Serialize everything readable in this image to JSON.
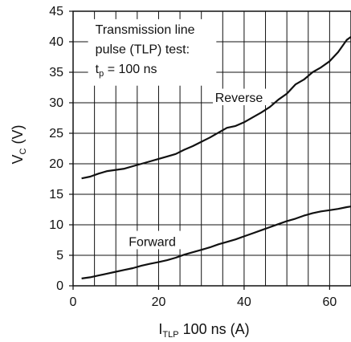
{
  "chart_data": {
    "type": "line",
    "title": "",
    "xlabel": {
      "main": "I",
      "sub": "TLP",
      "rest": " 100 ns (A)"
    },
    "ylabel": {
      "main": "V",
      "sub": "C",
      "rest": " (V)"
    },
    "xlim": [
      0,
      65
    ],
    "ylim": [
      0,
      45
    ],
    "xticks": [
      0,
      20,
      40,
      60
    ],
    "yticks": [
      0,
      5,
      10,
      15,
      20,
      25,
      30,
      35,
      40,
      45
    ],
    "grid": true,
    "grid_x_step": 5,
    "grid_y_step": 5,
    "line_color": "#111111",
    "annotation": {
      "line1": "Transmission line",
      "line2": "pulse (TLP) test:",
      "line3_main": "t",
      "line3_sub": "p",
      "line3_rest": " = 100 ns"
    },
    "series": [
      {
        "name": "Reverse",
        "x": [
          2,
          4,
          6,
          8,
          10,
          12,
          14,
          16,
          18,
          20,
          22,
          24,
          26,
          28,
          30,
          32,
          34,
          36,
          38,
          40,
          42,
          44,
          46,
          48,
          50,
          52,
          54,
          56,
          58,
          60,
          62,
          64,
          65
        ],
        "y": [
          17.6,
          17.9,
          18.4,
          18.8,
          19.0,
          19.2,
          19.6,
          20.0,
          20.4,
          20.8,
          21.2,
          21.6,
          22.3,
          22.9,
          23.6,
          24.3,
          25.1,
          25.9,
          26.2,
          26.8,
          27.6,
          28.4,
          29.3,
          30.5,
          31.5,
          33.0,
          33.8,
          35.0,
          35.8,
          36.8,
          38.3,
          40.3,
          40.8
        ]
      },
      {
        "name": "Forward",
        "x": [
          2,
          4,
          6,
          8,
          10,
          12,
          14,
          16,
          18,
          20,
          22,
          24,
          26,
          28,
          30,
          32,
          34,
          36,
          38,
          40,
          42,
          44,
          46,
          48,
          50,
          52,
          54,
          56,
          58,
          60,
          62,
          64,
          65
        ],
        "y": [
          1.2,
          1.4,
          1.7,
          2.0,
          2.3,
          2.6,
          2.9,
          3.3,
          3.6,
          3.9,
          4.2,
          4.6,
          5.1,
          5.5,
          5.9,
          6.3,
          6.8,
          7.2,
          7.6,
          8.1,
          8.6,
          9.1,
          9.6,
          10.1,
          10.6,
          11.0,
          11.5,
          11.9,
          12.2,
          12.4,
          12.6,
          12.9,
          13.0
        ]
      }
    ]
  }
}
